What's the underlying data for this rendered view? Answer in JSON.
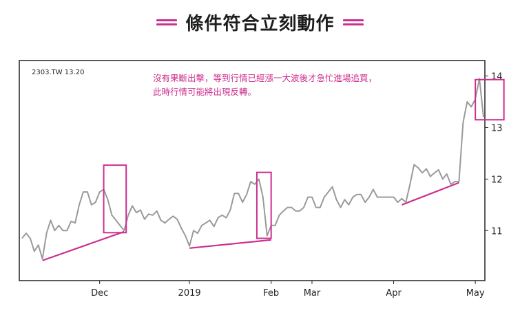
{
  "title": "條件符合立刻動作",
  "chart_data": {
    "type": "line",
    "ticker_label": "2303.TW 13.20",
    "annotation_lines": [
      "沒有果斷出擊，等到行情已經漲一大波後才急忙進場追買，",
      "此時行情可能將出現反轉。"
    ],
    "x_tick_labels": [
      "Dec",
      "2019",
      "Feb",
      "Mar",
      "Apr",
      "May"
    ],
    "x_tick_index": [
      19,
      41,
      61,
      71,
      91,
      111
    ],
    "y_ticks": [
      11,
      12,
      13,
      14
    ],
    "ylim": [
      10.03,
      14.3
    ],
    "series": [
      {
        "color": "#9a9a9a",
        "values": [
          10.85,
          10.95,
          10.85,
          10.6,
          10.72,
          10.45,
          10.95,
          11.2,
          11.0,
          11.1,
          11.0,
          11.0,
          11.18,
          11.15,
          11.5,
          11.75,
          11.75,
          11.5,
          11.55,
          11.75,
          11.8,
          11.6,
          11.3,
          11.2,
          11.1,
          11.0,
          11.3,
          11.48,
          11.35,
          11.4,
          11.22,
          11.32,
          11.3,
          11.38,
          11.2,
          11.15,
          11.22,
          11.28,
          11.22,
          11.05,
          10.9,
          10.7,
          11.0,
          10.95,
          11.1,
          11.15,
          11.2,
          11.08,
          11.25,
          11.3,
          11.25,
          11.4,
          11.72,
          11.72,
          11.55,
          11.7,
          11.95,
          11.9,
          12.0,
          11.65,
          10.9,
          11.1,
          11.1,
          11.3,
          11.38,
          11.45,
          11.45,
          11.38,
          11.38,
          11.45,
          11.65,
          11.65,
          11.45,
          11.45,
          11.65,
          11.75,
          11.85,
          11.6,
          11.45,
          11.6,
          11.5,
          11.65,
          11.7,
          11.7,
          11.55,
          11.65,
          11.8,
          11.65,
          11.65,
          11.65,
          11.65,
          11.65,
          11.55,
          11.62,
          11.55,
          11.9,
          12.28,
          12.22,
          12.12,
          12.2,
          12.05,
          12.12,
          12.18,
          12.0,
          12.1,
          11.9,
          11.95,
          11.95,
          13.1,
          13.5,
          13.4,
          13.55,
          13.95,
          13.2
        ]
      }
    ],
    "trend_lines": [
      {
        "color": "#cc2f8f",
        "from": [
          5,
          10.42
        ],
        "to": [
          25,
          10.98
        ]
      },
      {
        "color": "#cc2f8f",
        "from": [
          41,
          10.66
        ],
        "to": [
          61,
          10.82
        ]
      },
      {
        "color": "#cc2f8f",
        "from": [
          93,
          11.5
        ],
        "to": [
          107,
          11.93
        ]
      }
    ],
    "highlight_boxes": [
      {
        "color": "#cc2f8f",
        "x_range": [
          20,
          25.5
        ],
        "y_range": [
          10.96,
          12.27
        ]
      },
      {
        "color": "#cc2f8f",
        "x_range": [
          57.5,
          61
        ],
        "y_range": [
          10.85,
          12.13
        ]
      },
      {
        "color": "#cc2f8f",
        "x_range": [
          111,
          118
        ],
        "y_range": [
          13.15,
          13.93
        ]
      }
    ]
  }
}
